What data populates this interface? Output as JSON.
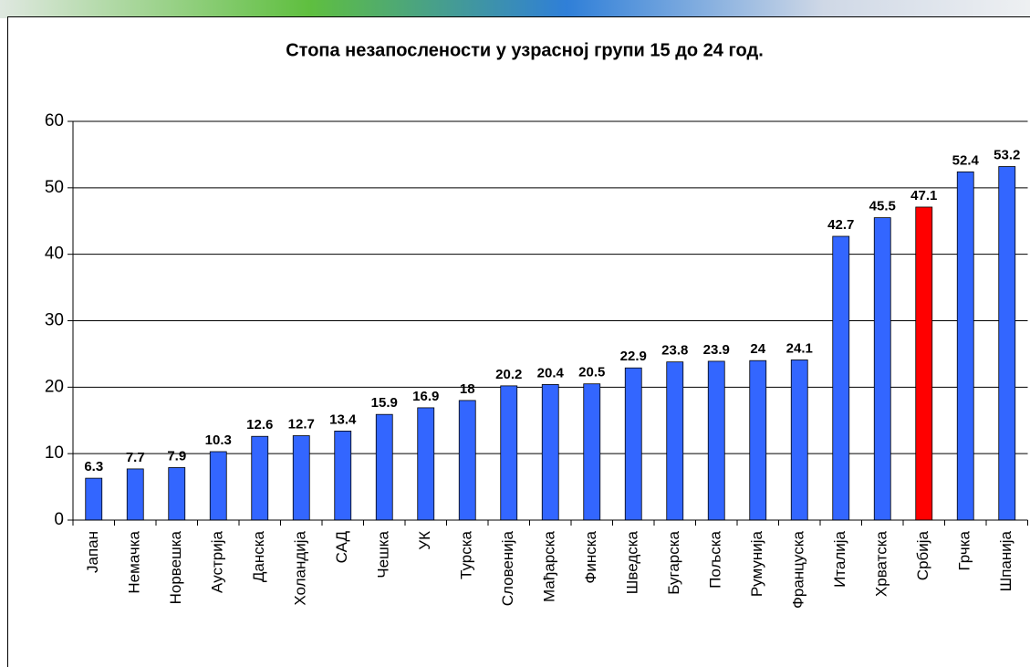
{
  "chart_data": {
    "type": "bar",
    "title": "Стопа незапослености у узрасној групи 15 до 24 год.",
    "categories": [
      "Јапан",
      "Немачка",
      "Норвешка",
      "Аустрија",
      "Данска",
      "Холандија",
      "САД",
      "Чешка",
      "УК",
      "Турска",
      "Словенија",
      "Мађарска",
      "Финска",
      "Шведска",
      "Бугарска",
      "Пољска",
      "Румунија",
      "Француска",
      "Италија",
      "Хрватска",
      "Србија",
      "Грчка",
      "Шпанија"
    ],
    "values": [
      6.3,
      7.7,
      7.9,
      10.3,
      12.6,
      12.7,
      13.4,
      15.9,
      16.9,
      18,
      20.2,
      20.4,
      20.5,
      22.9,
      23.8,
      23.9,
      24,
      24.1,
      42.7,
      45.5,
      47.1,
      52.4,
      53.2
    ],
    "colors": [
      "#3366ff",
      "#3366ff",
      "#3366ff",
      "#3366ff",
      "#3366ff",
      "#3366ff",
      "#3366ff",
      "#3366ff",
      "#3366ff",
      "#3366ff",
      "#3366ff",
      "#3366ff",
      "#3366ff",
      "#3366ff",
      "#3366ff",
      "#3366ff",
      "#3366ff",
      "#3366ff",
      "#3366ff",
      "#3366ff",
      "#ff0000",
      "#3366ff",
      "#3366ff"
    ],
    "ylim": [
      0,
      60
    ],
    "yticks": [
      0,
      10,
      20,
      30,
      40,
      50,
      60
    ],
    "grid": true
  }
}
